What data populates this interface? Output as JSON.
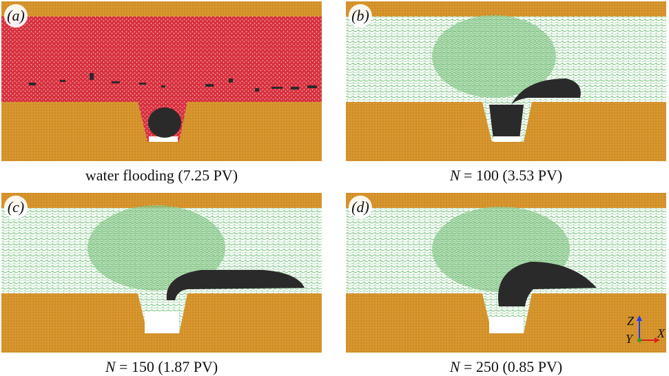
{
  "panels": [
    {
      "tag": "(a)",
      "caption_var": "",
      "caption_rest": "water flooding (7.25 PV)",
      "fluid": "red"
    },
    {
      "tag": "(b)",
      "caption_var": "N",
      "caption_rest": " = 100 (3.53 PV)",
      "fluid": "green"
    },
    {
      "tag": "(c)",
      "caption_var": "N",
      "caption_rest": " = 150 (1.87 PV)",
      "fluid": "green"
    },
    {
      "tag": "(d)",
      "caption_var": "N",
      "caption_rest": " = 250 (0.85 PV)",
      "fluid": "green"
    }
  ],
  "axes": {
    "z": "Z",
    "y": "Y",
    "x": "X"
  },
  "colors": {
    "rock": "#d8962e",
    "rock_edge": "#b87a1d",
    "water": "#d8313f",
    "polymer": "#43a84a",
    "oil": "#2a2a2a",
    "background": "#ffffff"
  }
}
